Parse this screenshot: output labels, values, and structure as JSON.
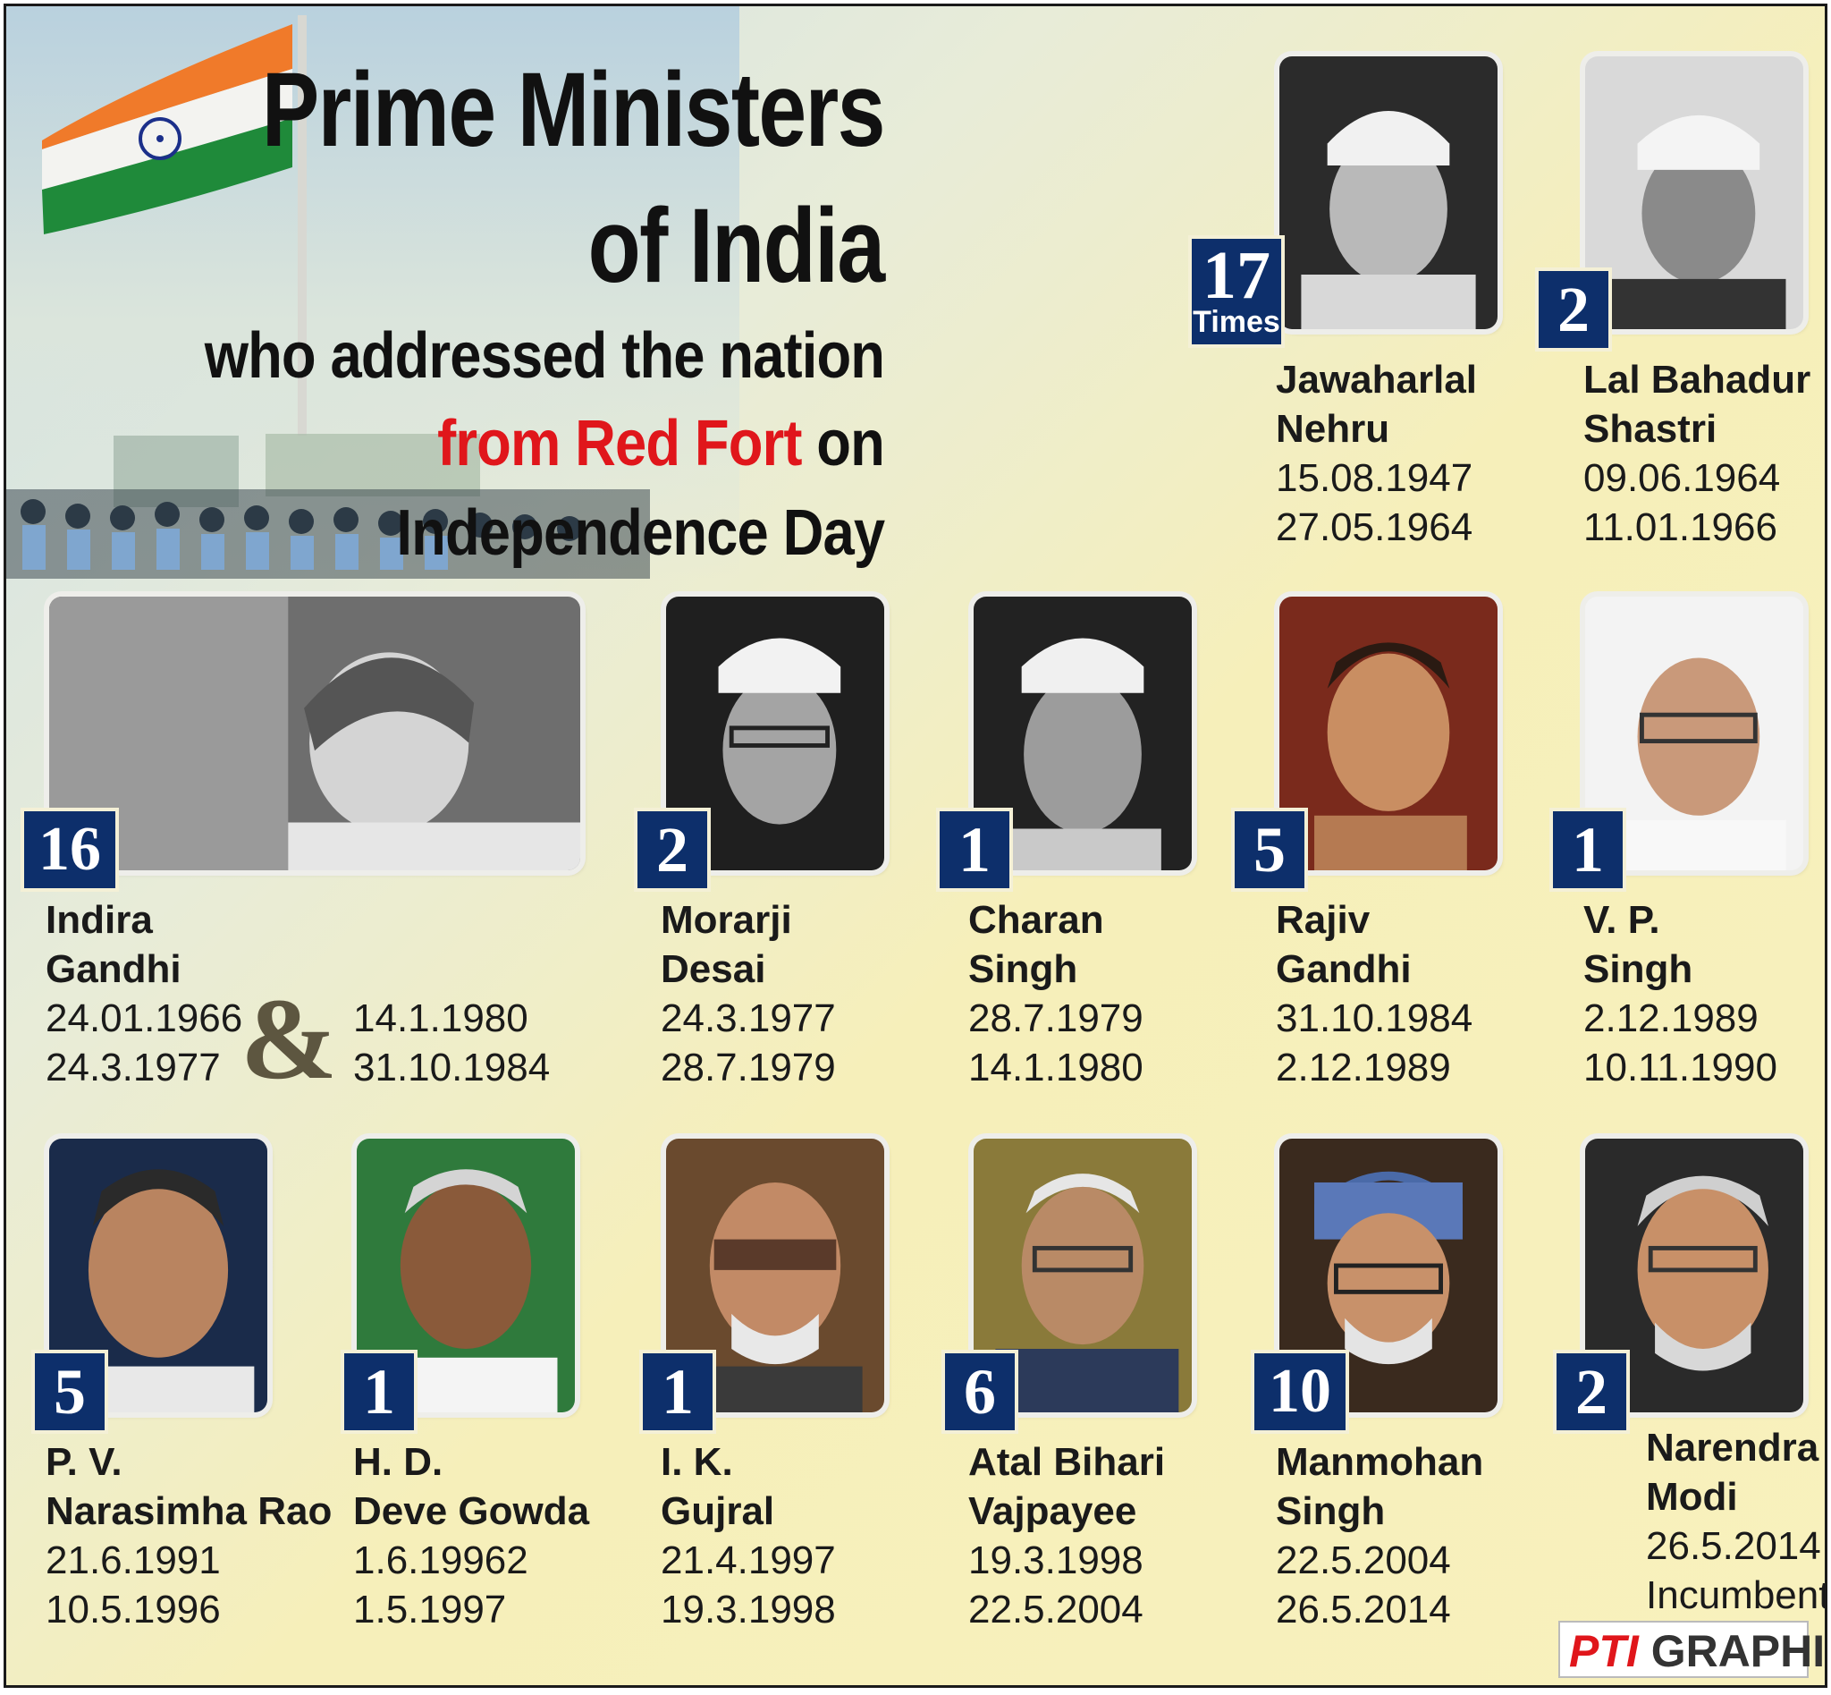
{
  "title": {
    "line1": "Prime Ministers",
    "line2": "of India",
    "line3": "who addressed the nation",
    "line4_red": "from Red Fort",
    "line4_rest": " on",
    "line5": "Independence Day"
  },
  "credit": {
    "brand": "PTI",
    "label": "GRAPHICS"
  },
  "ampersand": "&",
  "colors": {
    "badge": "#0d2f6b",
    "highlight_red": "#e0161b",
    "background": "#f8f1bd"
  },
  "prime_ministers": [
    {
      "name_line1": "Jawaharlal",
      "name_line2": "Nehru",
      "date1": "15.08.1947",
      "date2": "27.05.1964",
      "count": "17",
      "count_sub": "Times"
    },
    {
      "name_line1": "Lal Bahadur",
      "name_line2": "Shastri",
      "date1": "09.06.1964",
      "date2": "11.01.1966",
      "count": "2"
    },
    {
      "name_line1": "Indira",
      "name_line2": "Gandhi",
      "date1": "24.01.1966",
      "date2": "24.3.1977",
      "date3": "14.1.1980",
      "date4": "31.10.1984",
      "count": "16"
    },
    {
      "name_line1": "Morarji",
      "name_line2": "Desai",
      "date1": "24.3.1977",
      "date2": "28.7.1979",
      "count": "2"
    },
    {
      "name_line1": "Charan",
      "name_line2": "Singh",
      "date1": "28.7.1979",
      "date2": "14.1.1980",
      "count": "1"
    },
    {
      "name_line1": "Rajiv",
      "name_line2": "Gandhi",
      "date1": "31.10.1984",
      "date2": "2.12.1989",
      "count": "5"
    },
    {
      "name_line1": "V. P.",
      "name_line2": "Singh",
      "date1": "2.12.1989",
      "date2": "10.11.1990",
      "count": "1"
    },
    {
      "name_line1": "P. V.",
      "name_line2": "Narasimha Rao",
      "date1": "21.6.1991",
      "date2": "10.5.1996",
      "count": "5"
    },
    {
      "name_line1": "H. D.",
      "name_line2": "Deve Gowda",
      "date1": "1.6.19962",
      "date2": "1.5.1997",
      "count": "1"
    },
    {
      "name_line1": "I. K.",
      "name_line2": "Gujral",
      "date1": "21.4.1997",
      "date2": "19.3.1998",
      "count": "1"
    },
    {
      "name_line1": "Atal Bihari",
      "name_line2": "Vajpayee",
      "date1": "19.3.1998",
      "date2": "22.5.2004",
      "count": "6"
    },
    {
      "name_line1": "Manmohan",
      "name_line2": "Singh",
      "date1": "22.5.2004",
      "date2": "26.5.2014",
      "count": "10"
    },
    {
      "name_line1": "Narendra",
      "name_line2": "Modi",
      "date1": "26.5.2014",
      "date2": "Incumbent",
      "count": "2"
    }
  ]
}
